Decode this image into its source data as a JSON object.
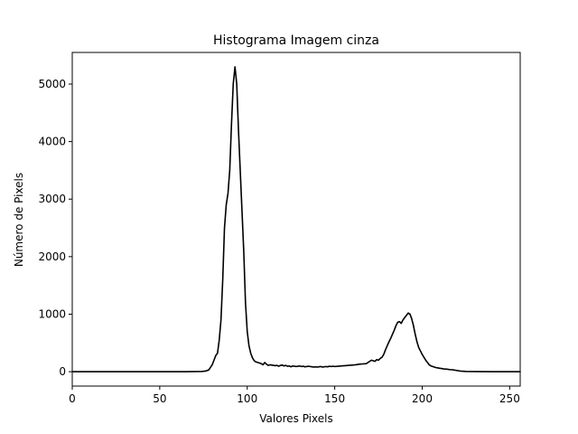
{
  "chart_data": {
    "type": "line",
    "title": "Histograma Imagem cinza",
    "xlabel": "Valores Pixels",
    "ylabel": "Número de Pixels",
    "xlim": [
      0,
      256
    ],
    "ylim": [
      -250,
      5550
    ],
    "x_ticks": [
      0,
      50,
      100,
      150,
      200,
      250
    ],
    "y_ticks": [
      0,
      1000,
      2000,
      3000,
      4000,
      5000
    ],
    "grid": false,
    "legend": "none",
    "colors": {
      "line": "#000000",
      "background": "#ffffff",
      "axes": "#000000"
    },
    "series": [
      {
        "x": [
          0,
          10,
          20,
          30,
          40,
          50,
          60,
          65,
          70,
          74,
          76,
          78,
          80,
          81,
          82,
          83,
          84,
          85,
          86,
          87,
          88,
          89,
          90,
          91,
          92,
          93,
          94,
          95,
          96,
          97,
          98,
          99,
          100,
          101,
          102,
          103,
          104,
          105,
          106,
          107,
          108,
          109,
          110,
          111,
          112,
          113,
          114,
          115,
          116,
          117,
          118,
          119,
          120,
          121,
          122,
          123,
          124,
          125,
          126,
          127,
          128,
          129,
          130,
          131,
          132,
          133,
          134,
          135,
          136,
          137,
          138,
          139,
          140,
          141,
          142,
          143,
          144,
          145,
          146,
          147,
          148,
          149,
          150,
          152,
          154,
          156,
          158,
          160,
          162,
          164,
          166,
          168,
          169,
          170,
          171,
          172,
          173,
          174,
          175,
          176,
          177,
          178,
          179,
          180,
          181,
          182,
          183,
          184,
          185,
          186,
          187,
          188,
          189,
          190,
          191,
          192,
          193,
          194,
          195,
          196,
          197,
          198,
          199,
          200,
          201,
          202,
          203,
          204,
          205,
          206,
          207,
          208,
          209,
          210,
          211,
          212,
          213,
          214,
          215,
          216,
          217,
          218,
          219,
          220,
          221,
          222,
          225,
          230,
          240,
          250,
          256
        ],
        "values": [
          0,
          0,
          0,
          0,
          0,
          0,
          0,
          0,
          2,
          5,
          10,
          30,
          120,
          200,
          280,
          320,
          550,
          900,
          1600,
          2500,
          2900,
          3100,
          3500,
          4300,
          5000,
          5300,
          5000,
          4200,
          3500,
          2800,
          2100,
          1200,
          700,
          450,
          320,
          240,
          190,
          170,
          160,
          150,
          140,
          120,
          160,
          130,
          110,
          120,
          115,
          110,
          105,
          110,
          95,
          110,
          115,
          100,
          110,
          95,
          100,
          85,
          100,
          95,
          90,
          95,
          100,
          90,
          95,
          85,
          90,
          95,
          90,
          85,
          80,
          85,
          80,
          85,
          90,
          80,
          85,
          90,
          85,
          95,
          90,
          95,
          90,
          95,
          100,
          105,
          110,
          115,
          120,
          130,
          135,
          140,
          160,
          180,
          200,
          190,
          180,
          210,
          200,
          230,
          250,
          300,
          380,
          450,
          520,
          580,
          650,
          720,
          800,
          860,
          870,
          840,
          900,
          940,
          980,
          1020,
          1000,
          920,
          800,
          650,
          520,
          420,
          360,
          300,
          250,
          200,
          160,
          120,
          100,
          90,
          80,
          70,
          65,
          60,
          55,
          50,
          45,
          45,
          40,
          35,
          35,
          30,
          25,
          20,
          15,
          10,
          5,
          2,
          0,
          0,
          0
        ]
      }
    ]
  }
}
